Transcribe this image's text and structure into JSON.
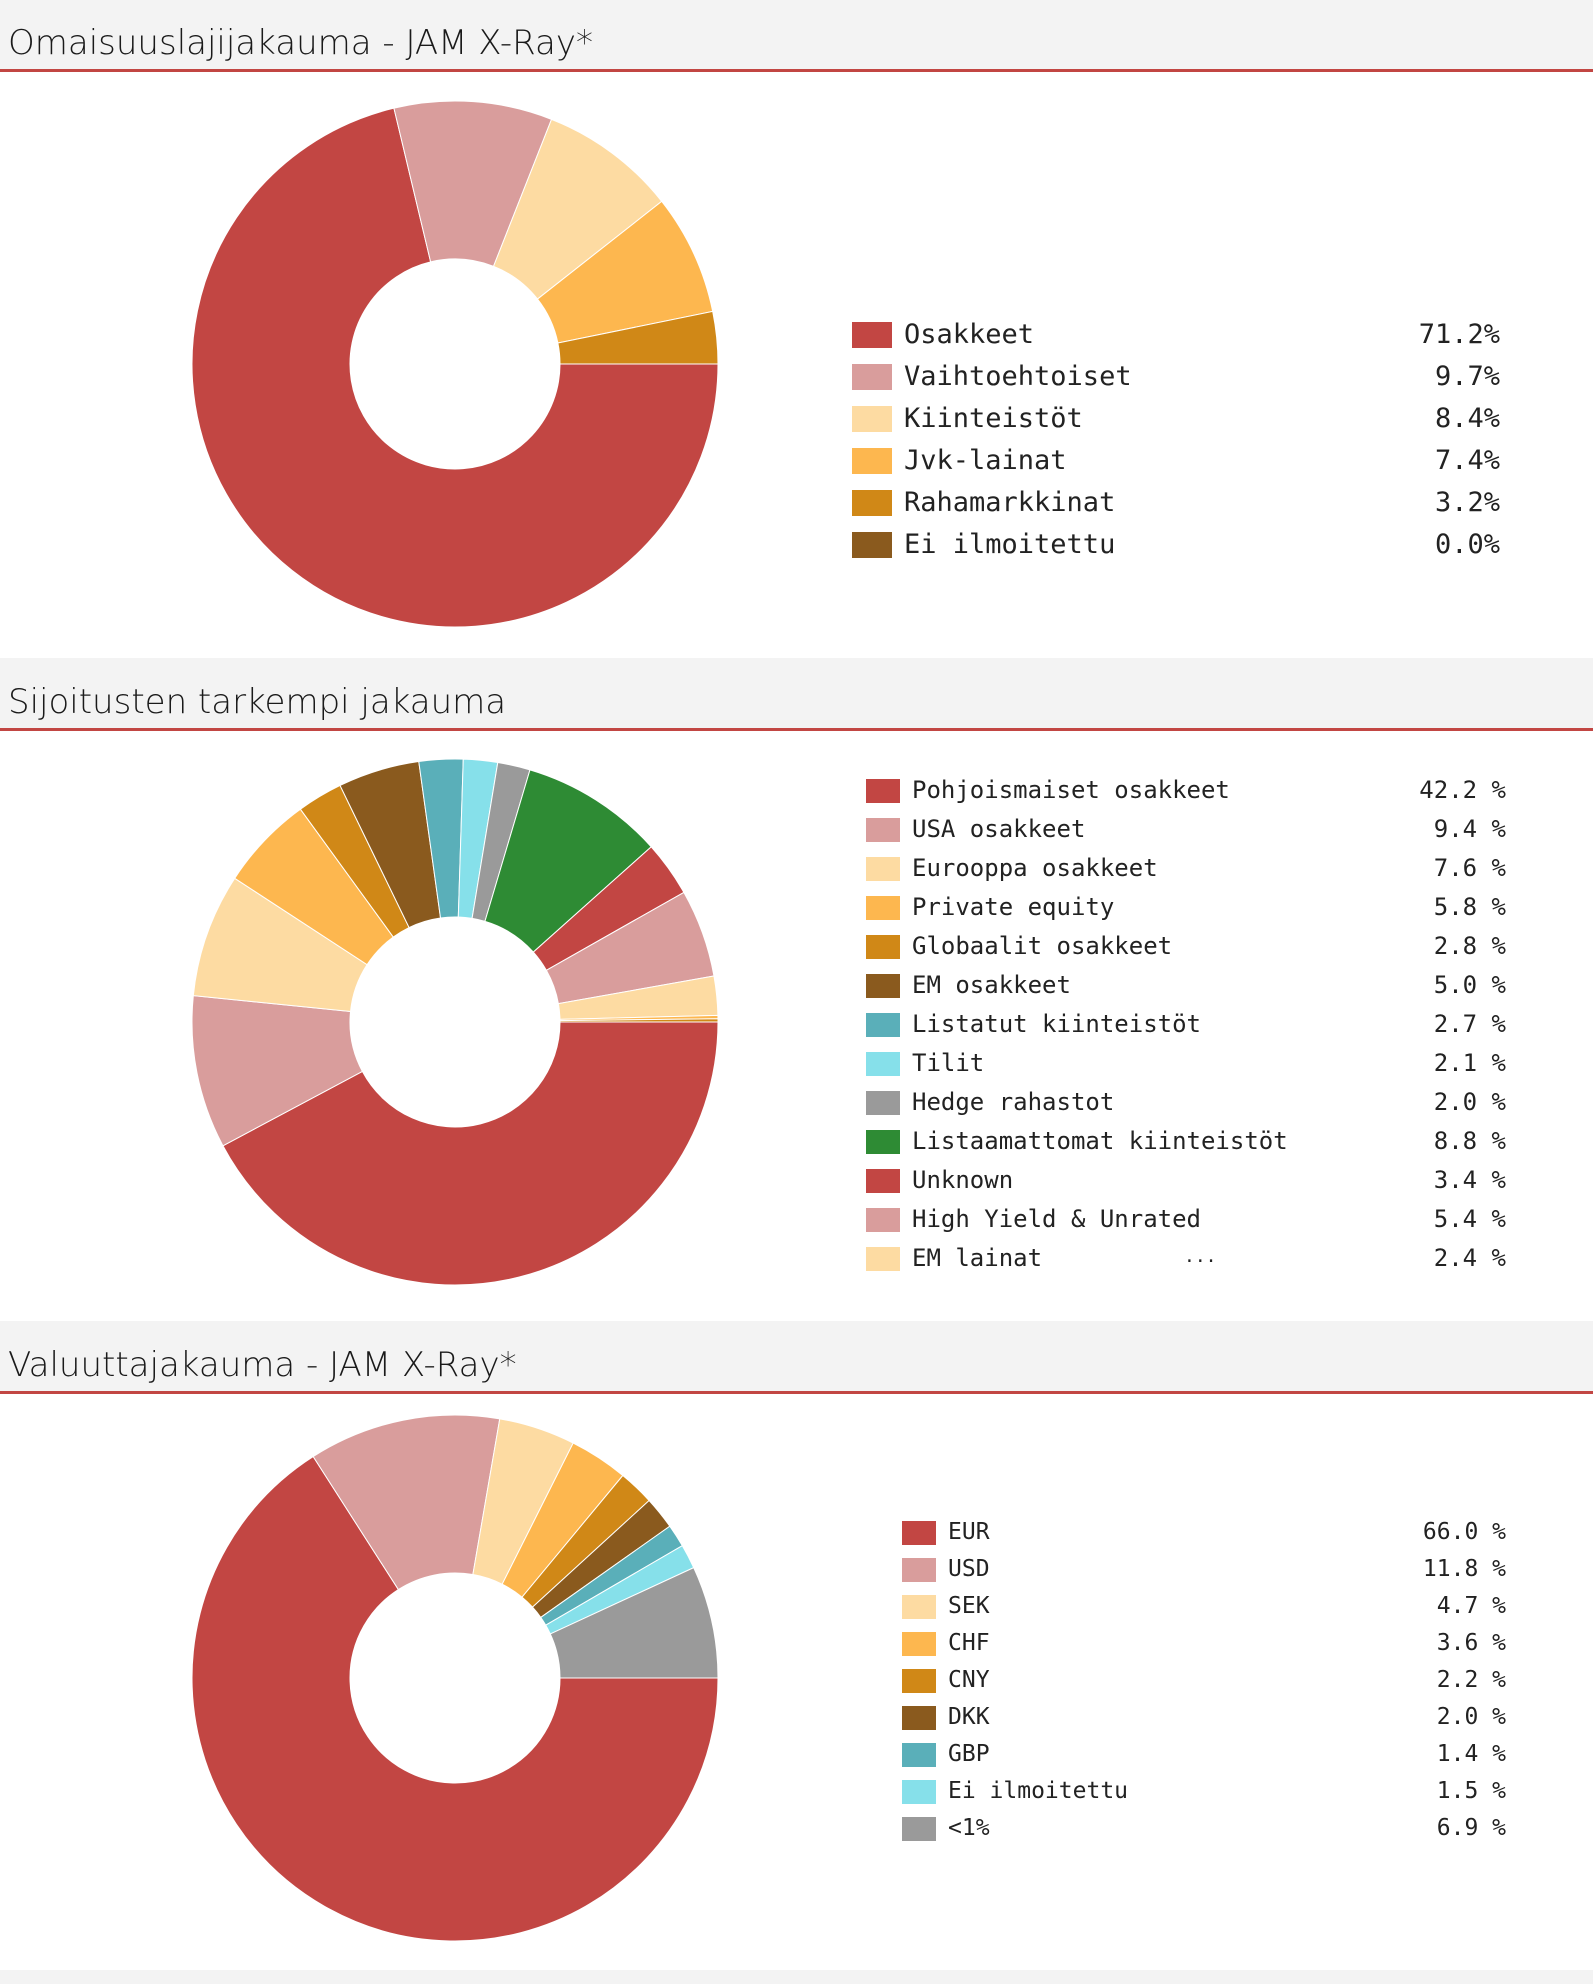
{
  "sections": [
    {
      "title": "Omaisuuslajijakauma - JAM X-Ray*",
      "chart_data": {
        "type": "pie",
        "variant": "donut",
        "categories": [
          "Osakkeet",
          "Vaihtoehtoiset",
          "Kiinteistöt",
          "Jvk-lainat",
          "Rahamarkkinat",
          "Ei ilmoitettu"
        ],
        "values": [
          71.2,
          9.7,
          8.4,
          7.4,
          3.2,
          0.0
        ],
        "value_labels": [
          "71.2%",
          "9.7%",
          "8.4%",
          "7.4%",
          "3.2%",
          "0.0%"
        ],
        "colors": [
          "#c24643",
          "#d99d9c",
          "#fddba2",
          "#fdb74f",
          "#d08817",
          "#8a5a1e"
        ],
        "legend": "right"
      }
    },
    {
      "title": "Sijoitusten tarkempi jakauma",
      "chart_data": {
        "type": "pie",
        "variant": "donut",
        "categories": [
          "Pohjoismaiset osakkeet",
          "USA osakkeet",
          "Eurooppa osakkeet",
          "Private equity",
          "Globaalit osakkeet",
          "EM osakkeet",
          "Listatut kiinteistöt",
          "Tilit",
          "Hedge rahastot",
          "Listaamattomat kiinteistöt",
          "Unknown",
          "High Yield & Unrated",
          "EM lainat"
        ],
        "values": [
          42.2,
          9.4,
          7.6,
          5.8,
          2.8,
          5.0,
          2.7,
          2.1,
          2.0,
          8.8,
          3.4,
          5.4,
          2.4
        ],
        "value_labels": [
          "42.2 %",
          "9.4 %",
          "7.6 %",
          "5.8 %",
          "2.8 %",
          "5.0 %",
          "2.7 %",
          "2.1 %",
          "2.0 %",
          "8.8 %",
          "3.4 %",
          "5.4 %",
          "2.4 %"
        ],
        "unlisted_values": [
          0.2,
          0.2
        ],
        "unlisted_colors": [
          "#fdb74f",
          "#d08817"
        ],
        "colors": [
          "#c24643",
          "#d99d9c",
          "#fddba2",
          "#fdb74f",
          "#d08817",
          "#8a5a1e",
          "#5aafb9",
          "#86e0ea",
          "#9a9a9a",
          "#2e8b34",
          "#c24643",
          "#d99d9c",
          "#fddba2"
        ],
        "legend": "right",
        "legend_more": "..."
      }
    },
    {
      "title": "Valuuttajakauma - JAM X-Ray*",
      "chart_data": {
        "type": "pie",
        "variant": "donut",
        "categories": [
          "EUR",
          "USD",
          "SEK",
          "CHF",
          "CNY",
          "DKK",
          "GBP",
          "Ei ilmoitettu",
          "<1%"
        ],
        "values": [
          66.0,
          11.8,
          4.7,
          3.6,
          2.2,
          2.0,
          1.4,
          1.5,
          6.9
        ],
        "value_labels": [
          "66.0 %",
          "11.8 %",
          "4.7 %",
          "3.6 %",
          "2.2 %",
          "2.0 %",
          "1.4 %",
          "1.5 %",
          "6.9 %"
        ],
        "colors": [
          "#c24643",
          "#d99d9c",
          "#fddba2",
          "#fdb74f",
          "#d08817",
          "#8a5a1e",
          "#5aafb9",
          "#86e0ea",
          "#9a9a9a"
        ],
        "legend": "right"
      }
    }
  ]
}
